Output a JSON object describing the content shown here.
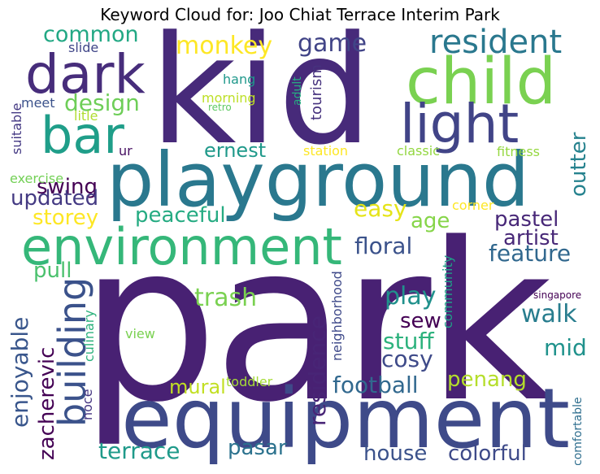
{
  "title": "Keyword Cloud for: Joo Chiat Terrace Interim Park",
  "words": {
    "park": {
      "text": "park",
      "color": "#482173"
    },
    "kid": {
      "text": "kid",
      "color": "#472a7a"
    },
    "equipment": {
      "text": "equipment",
      "color": "#3e4a89"
    },
    "playground": {
      "text": "playground",
      "color": "#2a788e"
    },
    "environment": {
      "text": "environment",
      "color": "#35b779"
    },
    "child": {
      "text": "child",
      "color": "#7ad151"
    },
    "light": {
      "text": "light",
      "color": "#414487"
    },
    "dark": {
      "text": "dark",
      "color": "#472d7b"
    },
    "bar": {
      "text": "bar",
      "color": "#1f9e89"
    },
    "resident": {
      "text": "resident",
      "color": "#2a788e"
    },
    "building": {
      "text": "building",
      "color": "#3b528b"
    },
    "common": {
      "text": "common",
      "color": "#22a884"
    },
    "monkey": {
      "text": "monkey",
      "color": "#fde725"
    },
    "game": {
      "text": "game",
      "color": "#414487"
    },
    "design": {
      "text": "design",
      "color": "#6ece58"
    },
    "swing": {
      "text": "swing",
      "color": "#440154"
    },
    "updated": {
      "text": "updated",
      "color": "#443a83"
    },
    "storey": {
      "text": "storey",
      "color": "#fde725"
    },
    "peaceful": {
      "text": "peaceful",
      "color": "#25ab82"
    },
    "ernest": {
      "text": "ernest",
      "color": "#1f998a"
    },
    "easy": {
      "text": "easy",
      "color": "#e5e419"
    },
    "age": {
      "text": "age",
      "color": "#86d549"
    },
    "pastel": {
      "text": "pastel",
      "color": "#482878"
    },
    "artist": {
      "text": "artist",
      "color": "#482878"
    },
    "floral": {
      "text": "floral",
      "color": "#3b528b"
    },
    "feature": {
      "text": "feature",
      "color": "#31688e"
    },
    "outter": {
      "text": "outter",
      "color": "#26828e"
    },
    "pull": {
      "text": "pull",
      "color": "#4ac16d"
    },
    "trash": {
      "text": "trash",
      "color": "#7ad151"
    },
    "play": {
      "text": "play",
      "color": "#21918c"
    },
    "sew": {
      "text": "sew",
      "color": "#440154"
    },
    "walk": {
      "text": "walk",
      "color": "#287d8e"
    },
    "stuff": {
      "text": "stuff",
      "color": "#2db27d"
    },
    "cosy": {
      "text": "cosy",
      "color": "#3e4a89"
    },
    "mid": {
      "text": "mid",
      "color": "#20928c"
    },
    "residence": {
      "text": "residence",
      "color": "#482576"
    },
    "football": {
      "text": "football",
      "color": "#31688e"
    },
    "penang": {
      "text": "penang",
      "color": "#b5de2b"
    },
    "mural": {
      "text": "mural",
      "color": "#c2df23"
    },
    "toddler": {
      "text": "toddler",
      "color": "#a5db36"
    },
    "enjoyable": {
      "text": "enjoyable",
      "color": "#39568c"
    },
    "zacherevic": {
      "text": "zacherevic",
      "color": "#440154"
    },
    "terrace": {
      "text": "terrace",
      "color": "#1f9a8a"
    },
    "pasar": {
      "text": "pasar",
      "color": "#2c728e"
    },
    "house": {
      "text": "house",
      "color": "#3b528b"
    },
    "colorful": {
      "text": "colorful",
      "color": "#3e4a89"
    },
    "slide": {
      "text": "slide",
      "color": "#404688"
    },
    "meet": {
      "text": "meet",
      "color": "#3b528b"
    },
    "litle": {
      "text": "litle",
      "color": "#b0dd2f"
    },
    "suitable": {
      "text": "suitable",
      "color": "#443983"
    },
    "exercise": {
      "text": "exercise",
      "color": "#73d056"
    },
    "ur": {
      "text": "ur",
      "color": "#471063"
    },
    "hang": {
      "text": "hang",
      "color": "#1f988b"
    },
    "morning": {
      "text": "morning",
      "color": "#bddf26"
    },
    "retro": {
      "text": "retro",
      "color": "#5ec962"
    },
    "adult": {
      "text": "adult",
      "color": "#26ad81"
    },
    "tourism": {
      "text": "tourism",
      "color": "#46327e"
    },
    "station": {
      "text": "station",
      "color": "#fde725"
    },
    "classic": {
      "text": "classic",
      "color": "#93d741"
    },
    "fitness": {
      "text": "fitness",
      "color": "#95d840"
    },
    "corner": {
      "text": "corner",
      "color": "#fde725"
    },
    "view": {
      "text": "view",
      "color": "#7ad151"
    },
    "culinary": {
      "text": "culinary",
      "color": "#2db27d"
    },
    "noce": {
      "text": "noce",
      "color": "#453581"
    },
    "neighborhood": {
      "text": "neighborhood",
      "color": "#3e4989"
    },
    "community": {
      "text": "community",
      "color": "#1fa188"
    },
    "singapore": {
      "text": "singapore",
      "color": "#440154"
    },
    "comfortable": {
      "text": "comfortable",
      "color": "#2e6e8e"
    }
  }
}
